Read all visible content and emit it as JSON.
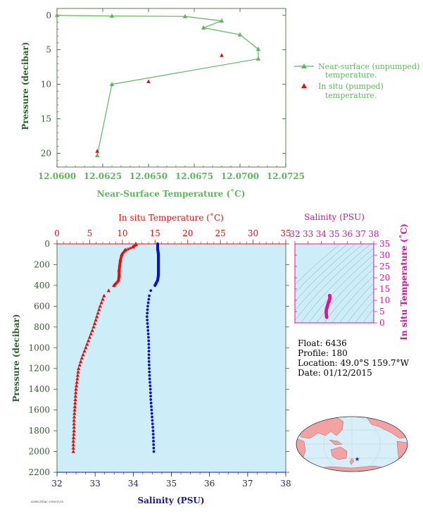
{
  "colors": {
    "green": "#5cb85c",
    "dark_green": "#2f5f2f",
    "red": "#dd1111",
    "blue": "#0a14c8",
    "magenta": "#e0119a",
    "navy": "#1a1a8c",
    "panel_bg": "#cdeef8",
    "land": "#f2a2a2",
    "ocean": "#d8eef8"
  },
  "float_info": {
    "float": "Float:  6436",
    "profile": "Profile:  180",
    "location": "Location:  49.0°S  159.7°W",
    "date": "Date:  01/12/2015"
  },
  "footer_code": "AOML/GDAC 2016/01/14",
  "chart_data": [
    {
      "id": "near_surface",
      "type": "line",
      "title": "",
      "xlabel": "Near-Surface Temperature (˚C)",
      "ylabel": "Pressure (decibar)",
      "xlim": [
        12.06,
        12.0725
      ],
      "ylim": [
        22,
        -1
      ],
      "x_ticks": [
        "12.0600",
        "12.0625",
        "12.0650",
        "12.0675",
        "12.0700",
        "12.0725"
      ],
      "y_ticks": [
        "0",
        "5",
        "10",
        "15",
        "20"
      ],
      "legend": {
        "placement": "right"
      },
      "series": [
        {
          "name": "Near-surface (unpumped) temperature.",
          "label_line1": "Near-surface (unpumped)",
          "label_line2": "temperature.",
          "marker": "triangle-line",
          "x": [
            12.06,
            12.063,
            12.067,
            12.069,
            12.068,
            12.07,
            12.071,
            12.071,
            12.063,
            12.0622
          ],
          "y": [
            0.0,
            0.1,
            0.15,
            0.8,
            1.8,
            2.8,
            4.9,
            6.3,
            10.0,
            20.3
          ]
        },
        {
          "name": "In situ (pumped) temperature.",
          "label_line1": "In situ (pumped)",
          "label_line2": "temperature.",
          "marker": "triangle",
          "x": [
            12.069,
            12.065,
            12.0622
          ],
          "y": [
            5.8,
            9.6,
            19.7
          ]
        }
      ]
    },
    {
      "id": "profile",
      "type": "scatter",
      "title": "",
      "top_axis_label": "In situ Temperature (˚C)",
      "bottom_axis_label": "Salinity (PSU)",
      "ylabel": "Pressure (decibar)",
      "top_ticks": [
        "0",
        "5",
        "10",
        "15",
        "20",
        "25",
        "30",
        "35"
      ],
      "bottom_ticks": [
        "32",
        "33",
        "34",
        "35",
        "36",
        "37",
        "38"
      ],
      "y_ticks": [
        "0",
        "200",
        "400",
        "600",
        "800",
        "1000",
        "1200",
        "1400",
        "1600",
        "1800",
        "2000",
        "2200"
      ],
      "temperature_range": [
        0,
        35
      ],
      "salinity_range": [
        32,
        38
      ],
      "pressure_range": [
        0,
        2200
      ],
      "series": [
        {
          "name": "Temperature",
          "marker": "triangle",
          "pressure": [
            5,
            30,
            60,
            100,
            150,
            200,
            250,
            300,
            350,
            400,
            450,
            500,
            600,
            700,
            800,
            900,
            1000,
            1100,
            1200,
            1300,
            1400,
            1500,
            1600,
            1700,
            1800,
            1900,
            2000
          ],
          "values": [
            12.1,
            11.6,
            10.4,
            9.9,
            9.7,
            9.6,
            9.5,
            9.5,
            9.4,
            8.7,
            7.9,
            7.2,
            6.6,
            6.1,
            5.6,
            5.0,
            4.4,
            3.8,
            3.3,
            3.1,
            2.9,
            2.8,
            2.7,
            2.6,
            2.6,
            2.5,
            2.5
          ]
        },
        {
          "name": "Salinity",
          "marker": "dot",
          "pressure": [
            5,
            50,
            100,
            150,
            200,
            250,
            300,
            350,
            400,
            450,
            500,
            600,
            700,
            800,
            900,
            1000,
            1100,
            1200,
            1300,
            1400,
            1500,
            1600,
            1700,
            1800,
            1900,
            2000
          ],
          "values": [
            34.64,
            34.64,
            34.66,
            34.66,
            34.66,
            34.66,
            34.66,
            34.64,
            34.57,
            34.46,
            34.42,
            34.38,
            34.36,
            34.38,
            34.4,
            34.41,
            34.41,
            34.42,
            34.43,
            34.45,
            34.46,
            34.48,
            34.5,
            34.52,
            34.53,
            34.54
          ]
        }
      ]
    },
    {
      "id": "ts_diagram",
      "type": "scatter",
      "title": "Salinity (PSU)",
      "ylabel": "In situ Temperature (˚C)",
      "x_ticks": [
        "32",
        "33",
        "34",
        "35",
        "36",
        "37",
        "38"
      ],
      "y_ticks": [
        "0",
        "5",
        "10",
        "15",
        "20",
        "25",
        "30",
        "35"
      ],
      "xlim": [
        32,
        38
      ],
      "ylim": [
        0,
        35
      ],
      "series": [
        {
          "name": "T-S",
          "salinity": [
            34.42,
            34.4,
            34.39,
            34.38,
            34.4,
            34.45,
            34.5,
            34.55,
            34.6,
            34.62,
            34.64,
            34.66,
            34.66,
            34.64
          ],
          "temperature": [
            2.5,
            3.0,
            4.0,
            5.0,
            6.0,
            7.0,
            8.0,
            9.0,
            9.5,
            10.0,
            10.5,
            11.0,
            12.0,
            12.1
          ]
        }
      ]
    },
    {
      "id": "location_map",
      "type": "scatter",
      "title": "",
      "series": [
        {
          "name": "Float position",
          "lon": [
            -159.7
          ],
          "lat": [
            -49.0
          ],
          "marker": "star"
        }
      ]
    }
  ]
}
